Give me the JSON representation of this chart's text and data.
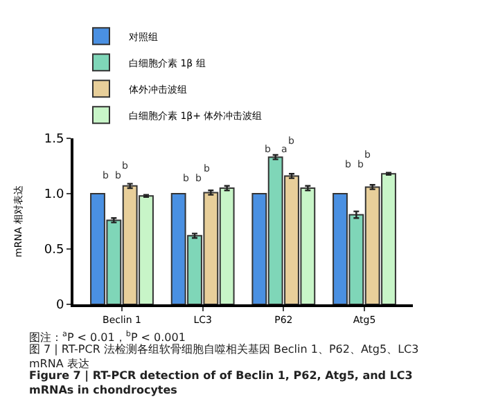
{
  "chart_data": {
    "type": "bar",
    "ylabel": "mRNA 相对表达",
    "categories": [
      "Beclin 1",
      "LC3",
      "P62",
      "Atg5"
    ],
    "series": [
      {
        "name": "对照组",
        "color": "#4a90e2",
        "values": [
          1,
          1,
          1,
          1
        ]
      },
      {
        "name": "白细胞介素 1β 组",
        "color": "#7fd6b8",
        "values": [
          0.76,
          0.62,
          1.33,
          0.81
        ],
        "errors": [
          0.02,
          0.02,
          0.02,
          0.03
        ]
      },
      {
        "name": "体外冲击波组",
        "color": "#e8cf9a",
        "values": [
          1.07,
          1.01,
          1.16,
          1.06
        ],
        "errors": [
          0.02,
          0.02,
          0.02,
          0.02
        ]
      },
      {
        "name": "白细胞介素 1β+ 体外冲击波组",
        "color": "#c8f5c8",
        "values": [
          0.98,
          1.05,
          1.05,
          1.18
        ],
        "errors": [
          0.01,
          0.02,
          0.02,
          0.01
        ]
      }
    ],
    "ylim": [
      0,
      1.5
    ],
    "yticks": [
      0,
      {
        "value": 0.5,
        "label": "0.5"
      },
      {
        "value": 1,
        "label": "1.0"
      },
      {
        "value": 1.5,
        "label": "1.5"
      }
    ],
    "legend": "top left",
    "annotations": [
      "b",
      "b",
      "b",
      "b",
      "b",
      "b",
      "b",
      "a",
      "b",
      "b",
      "b",
      "b",
      "图注：$^{a}$P < 0.01，$^{b}$P < 0.001",
      "图 7 | RT-PCR 法检测各组软骨细胞自噬相关基因 Beclin 1、P62、Atg5、LC3 mRNA 表达",
      "Figure 7 | RT-PCR detection of of Beclin 1, P62, Atg5, and LC3 mRNAs in chondrocytes"
    ]
  }
}
